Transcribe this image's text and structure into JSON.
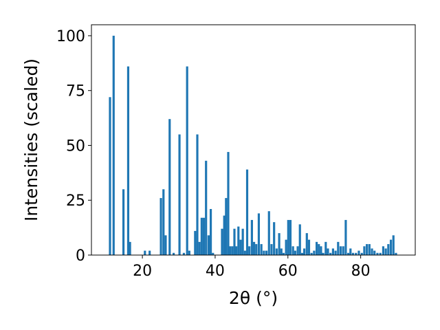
{
  "chart_data": {
    "type": "bar",
    "xlabel": "2θ (°)",
    "ylabel": "Intensities (scaled)",
    "xlim": [
      6.0,
      95.0
    ],
    "ylim": [
      0,
      105
    ],
    "xticks": [
      20,
      40,
      60,
      80
    ],
    "yticks": [
      0,
      25,
      50,
      75,
      100
    ],
    "bar_color": "#1f77b4",
    "bar_width_deg": 0.6,
    "grid": false,
    "x": [
      11.1,
      12.1,
      14.8,
      16.1,
      16.6,
      20.7,
      22.0,
      25.1,
      25.8,
      26.4,
      27.5,
      28.6,
      30.2,
      31.4,
      32.3,
      32.9,
      34.5,
      35.1,
      35.7,
      36.3,
      36.9,
      37.5,
      38.2,
      38.8,
      39.4,
      41.9,
      42.5,
      43.0,
      43.6,
      44.1,
      44.7,
      45.3,
      45.8,
      46.4,
      47.0,
      47.6,
      48.2,
      48.8,
      49.4,
      50.1,
      50.7,
      51.3,
      52.0,
      52.7,
      53.4,
      54.1,
      54.8,
      55.5,
      56.2,
      56.9,
      57.6,
      58.2,
      58.8,
      59.5,
      60.1,
      60.7,
      61.4,
      62.0,
      62.7,
      63.3,
      63.9,
      64.5,
      65.2,
      65.8,
      66.5,
      67.2,
      67.9,
      68.5,
      69.1,
      69.7,
      70.4,
      71.0,
      71.7,
      72.4,
      73.1,
      73.8,
      74.5,
      75.2,
      75.9,
      76.6,
      77.2,
      77.9,
      78.7,
      79.5,
      80.3,
      81.0,
      81.7,
      82.4,
      83.1,
      83.8,
      84.6,
      85.4,
      86.2,
      86.9,
      87.6,
      88.3,
      89.0,
      89.7
    ],
    "values": [
      72,
      100,
      30,
      86,
      6,
      2,
      2,
      26,
      30,
      9,
      62,
      1,
      55,
      1,
      86,
      2,
      11,
      55,
      6,
      17,
      17,
      43,
      9,
      21,
      1,
      12,
      18,
      26,
      47,
      4,
      4,
      12,
      4,
      13,
      7,
      12,
      2,
      39,
      4,
      16,
      6,
      5,
      19,
      5,
      2,
      2,
      20,
      5,
      15,
      3,
      10,
      3,
      1,
      7,
      16,
      16,
      4,
      2,
      4,
      14,
      1,
      3,
      10,
      7,
      1,
      2,
      6,
      5,
      4,
      1,
      6,
      3,
      1,
      3,
      2,
      6,
      4,
      4,
      16,
      1,
      3,
      1,
      1,
      2,
      1,
      4,
      5,
      5,
      3,
      2,
      1,
      1,
      4,
      3,
      5,
      7,
      9,
      1
    ]
  }
}
